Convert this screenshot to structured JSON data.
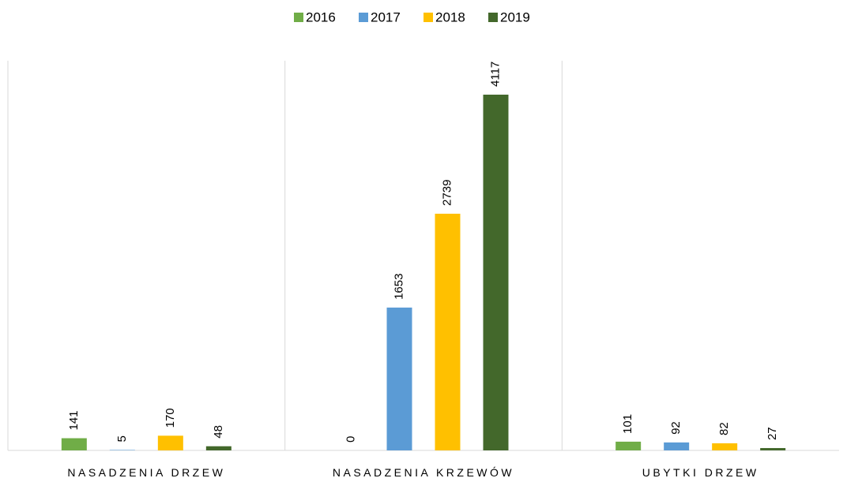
{
  "chart_data": {
    "type": "bar",
    "categories": [
      "NASADZENIA DRZEW",
      "NASADZENIA KRZEWÓW",
      "UBYTKI DRZEW"
    ],
    "series": [
      {
        "name": "2016",
        "color": "#70ad47",
        "values": [
          141,
          0,
          101
        ]
      },
      {
        "name": "2017",
        "color": "#5b9bd5",
        "values": [
          5,
          1653,
          92
        ]
      },
      {
        "name": "2018",
        "color": "#ffc000",
        "values": [
          170,
          2739,
          82
        ]
      },
      {
        "name": "2019",
        "color": "#43682b",
        "values": [
          48,
          4117,
          27
        ]
      }
    ],
    "legend": "top"
  }
}
